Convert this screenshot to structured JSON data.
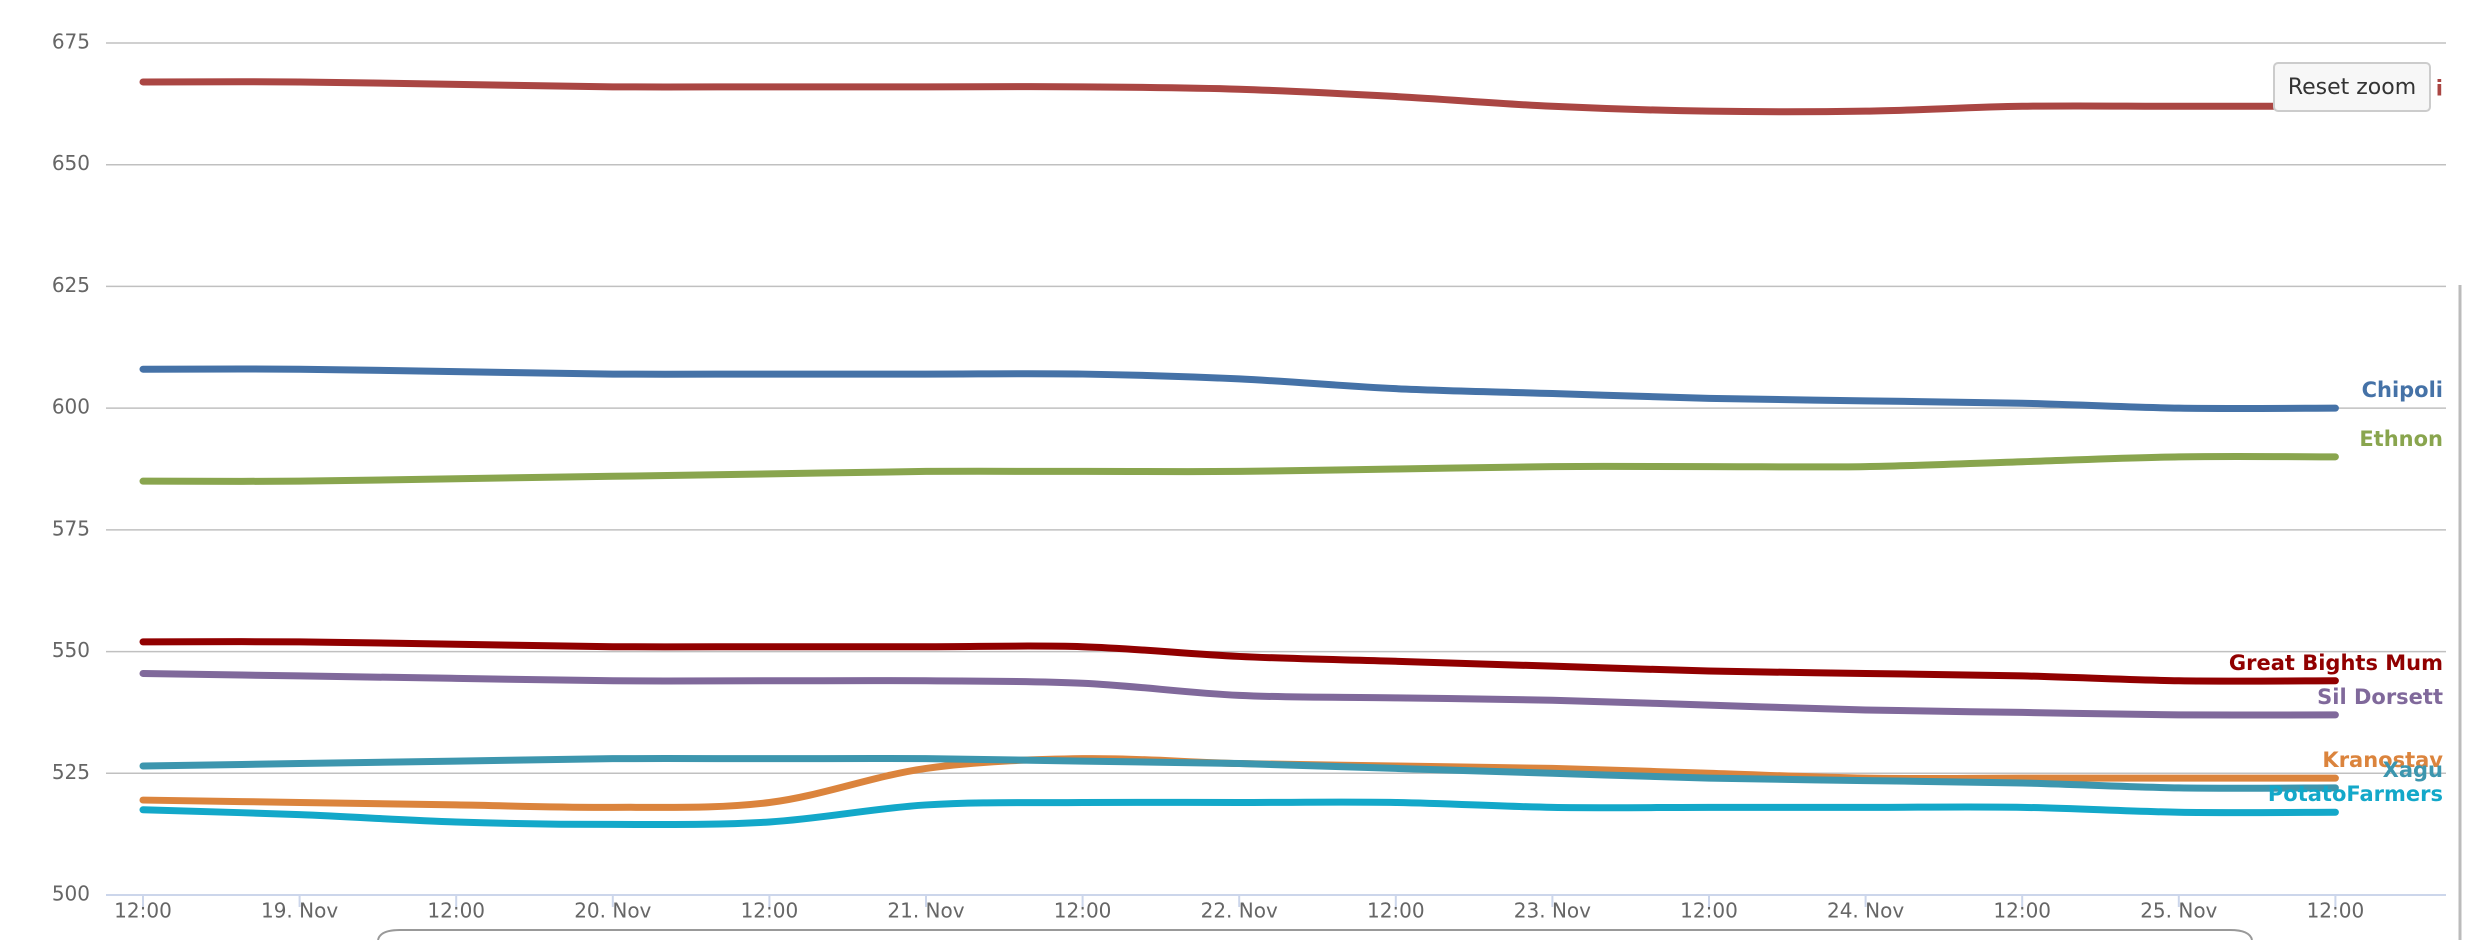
{
  "chart_data": {
    "type": "line",
    "categories": [
      "12:00",
      "19. Nov",
      "12:00",
      "20. Nov",
      "12:00",
      "21. Nov",
      "12:00",
      "22. Nov",
      "12:00",
      "23. Nov",
      "12:00",
      "24. Nov",
      "12:00",
      "25. Nov",
      "12:00"
    ],
    "series": [
      {
        "name": "i",
        "color": "#aa4643",
        "values": [
          667,
          667,
          666.5,
          666,
          666,
          666,
          666,
          665.5,
          664,
          662,
          661,
          661,
          662,
          662,
          662
        ]
      },
      {
        "name": "Chipoli",
        "color": "#4572a7",
        "values": [
          608,
          608,
          607.5,
          607,
          607,
          607,
          607,
          606,
          604,
          603,
          602,
          601.5,
          601,
          600,
          600
        ]
      },
      {
        "name": "Ethnon",
        "color": "#89a54e",
        "values": [
          585,
          585,
          585.5,
          586,
          586.5,
          587,
          587,
          587,
          587.5,
          588,
          588,
          588,
          589,
          590,
          590
        ]
      },
      {
        "name": "Great Bights Mum",
        "color": "#910000",
        "values": [
          552,
          552,
          551.5,
          551,
          551,
          551,
          551,
          549,
          548,
          547,
          546,
          545.5,
          545,
          544,
          544
        ]
      },
      {
        "name": "Sil Dorsett",
        "color": "#80699b",
        "values": [
          545.5,
          545,
          544.5,
          544,
          544,
          544,
          543.5,
          541,
          540.5,
          540,
          539,
          538,
          537.5,
          537,
          537
        ]
      },
      {
        "name": "Kranostav",
        "color": "#db843d",
        "values": [
          519.5,
          519,
          518.5,
          518,
          519,
          526,
          528,
          527,
          526.5,
          526,
          525,
          524,
          524,
          524,
          524
        ]
      },
      {
        "name": "Xagu",
        "color": "#3d96ae",
        "values": [
          526.5,
          527,
          527.5,
          528,
          528,
          528,
          527.5,
          527,
          526,
          525,
          524,
          523.5,
          523,
          522,
          522
        ]
      },
      {
        "name": "PotatoFarmers",
        "color": "#13a8c9",
        "values": [
          517.5,
          516.5,
          515,
          514.5,
          515,
          518.5,
          519,
          519,
          519,
          518,
          518,
          518,
          518,
          517,
          517
        ]
      }
    ],
    "ylim": [
      500,
      675
    ],
    "yticks": [
      500,
      525,
      550,
      575,
      600,
      625,
      650,
      675
    ],
    "grid": true
  },
  "ui": {
    "reset_zoom": "Reset zoom"
  }
}
